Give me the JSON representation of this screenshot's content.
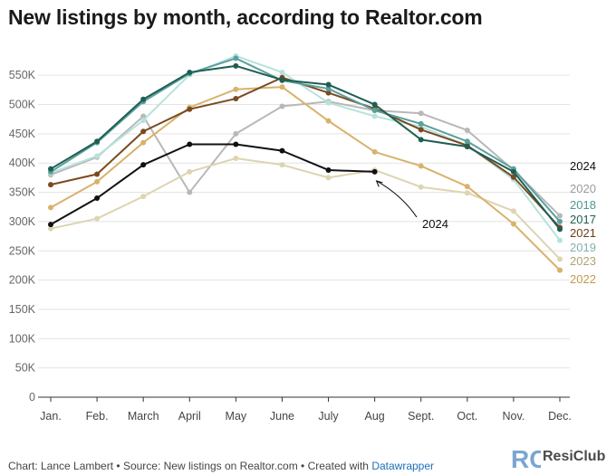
{
  "title": "New listings by month, according to Realtor.com",
  "footer": {
    "chart_by": "Chart: Lance Lambert",
    "source": "Source: New listings on Realtor.com",
    "created_with": "Created with",
    "tool": "Datawrapper",
    "separator": "•"
  },
  "brand": {
    "name": "ResiClub",
    "mark": "RC"
  },
  "chart_data": {
    "type": "line",
    "title": "New listings by month, according to Realtor.com",
    "xlabel": "",
    "ylabel": "",
    "categories": [
      "Jan.",
      "Feb.",
      "March",
      "April",
      "May",
      "June",
      "July",
      "Aug",
      "Sept.",
      "Oct.",
      "Nov.",
      "Dec."
    ],
    "ylim": [
      0,
      575000
    ],
    "yticks": [
      0,
      50000,
      100000,
      150000,
      200000,
      250000,
      300000,
      350000,
      400000,
      450000,
      500000,
      550000
    ],
    "ytick_labels": [
      "0",
      "50K",
      "100K",
      "150K",
      "200K",
      "250K",
      "300K",
      "350K",
      "400K",
      "450K",
      "500K",
      "550K"
    ],
    "grid": true,
    "annotation": {
      "text": "2024",
      "target_series": "2024",
      "target_index": 7
    },
    "series": [
      {
        "name": "2020",
        "color": "#b8b8b8",
        "values": [
          380000,
          410000,
          480000,
          350000,
          450000,
          497000,
          505000,
          490000,
          485000,
          456000,
          388000,
          310000
        ]
      },
      {
        "name": "2023",
        "color": "#ddd4b2",
        "values": [
          288000,
          305000,
          343000,
          385000,
          408000,
          397000,
          375000,
          388000,
          359000,
          349000,
          318000,
          236000
        ]
      },
      {
        "name": "2019",
        "color": "#b6e2dc",
        "values": [
          383000,
          412000,
          473000,
          551000,
          583000,
          555000,
          503000,
          480000,
          462000,
          430000,
          372000,
          268000
        ]
      },
      {
        "name": "2022",
        "color": "#d8b26c",
        "values": [
          324000,
          368000,
          435000,
          495000,
          526000,
          530000,
          472000,
          419000,
          395000,
          360000,
          296000,
          217000
        ]
      },
      {
        "name": "2021",
        "color": "#7a4a20",
        "values": [
          363000,
          381000,
          454000,
          492000,
          510000,
          546000,
          520000,
          493000,
          457000,
          430000,
          376000,
          290000
        ]
      },
      {
        "name": "2018",
        "color": "#5aa09d",
        "values": [
          385000,
          435000,
          505000,
          553000,
          579000,
          541000,
          527000,
          490000,
          467000,
          437000,
          390000,
          300000
        ]
      },
      {
        "name": "2017",
        "color": "#1f5e52",
        "values": [
          390000,
          437000,
          509000,
          555000,
          566000,
          542000,
          534000,
          500000,
          440000,
          428000,
          385000,
          287000
        ]
      },
      {
        "name": "2024",
        "color": "#111111",
        "values": [
          295000,
          340000,
          397000,
          432000,
          432000,
          421000,
          388000,
          385000,
          null,
          null,
          null,
          null
        ]
      }
    ],
    "legend_placement": "right",
    "legend_order": [
      "2024",
      "2020",
      "2018",
      "2017",
      "2021",
      "2019",
      "2023",
      "2022"
    ],
    "legend_colors": {
      "2024": "#111111",
      "2020": "#9a9a9a",
      "2018": "#4f9793",
      "2017": "#1f5e52",
      "2021": "#6b3f16",
      "2019": "#7fb3ad",
      "2023": "#b0a276",
      "2022": "#c29a4e"
    }
  }
}
